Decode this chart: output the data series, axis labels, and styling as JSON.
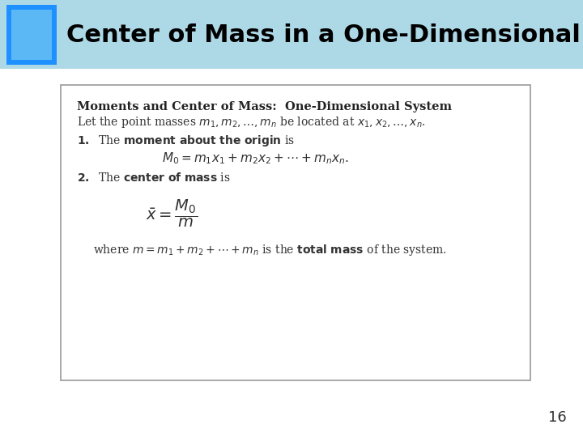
{
  "title": "Center of Mass in a One-Dimensional System",
  "title_bg_color": "#add8e6",
  "title_text_color": "#000000",
  "slide_bg_color": "#ffffff",
  "header_blue_box_color": "#1e90ff",
  "page_number": "16",
  "box_line_color": "#999999",
  "box_bg_color": "#ffffff"
}
